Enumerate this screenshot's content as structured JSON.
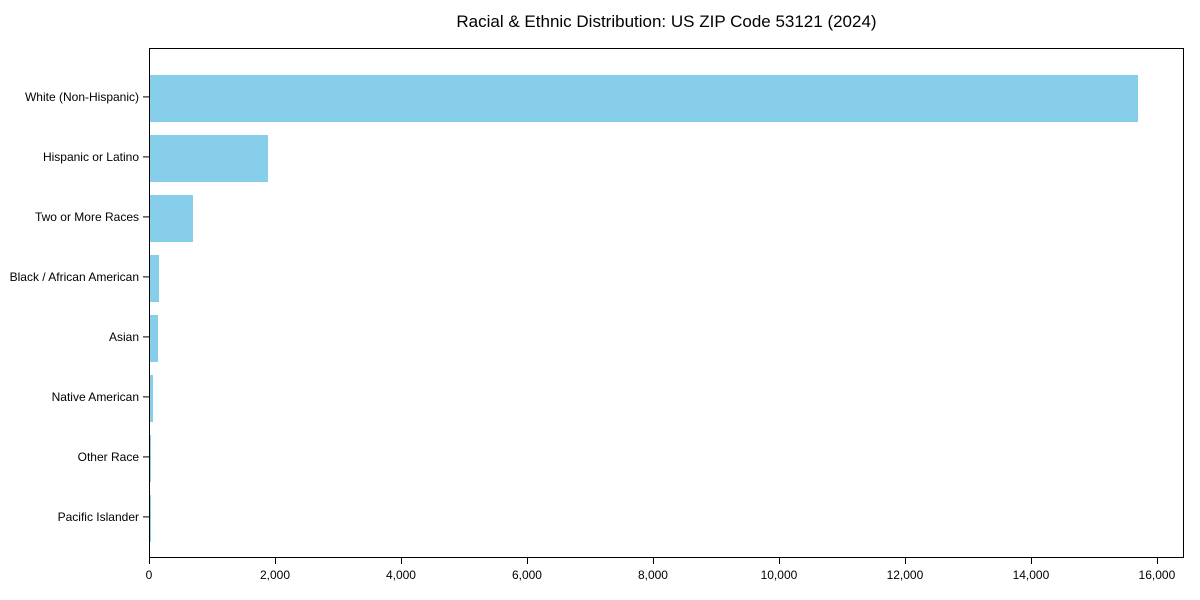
{
  "chart_data": {
    "type": "bar",
    "orientation": "horizontal",
    "title": "Racial & Ethnic Distribution: US ZIP Code 53121 (2024)",
    "categories": [
      "White (Non-Hispanic)",
      "Hispanic or Latino",
      "Two or More Races",
      "Black / African American",
      "Asian",
      "Native American",
      "Other Race",
      "Pacific Islander"
    ],
    "values": [
      15680,
      1870,
      680,
      150,
      130,
      50,
      8,
      2
    ],
    "xlabel": "",
    "ylabel": "",
    "xlim": [
      0,
      16430
    ],
    "x_ticks": [
      {
        "value": 0,
        "label": "0"
      },
      {
        "value": 2000,
        "label": "2,000"
      },
      {
        "value": 4000,
        "label": "4,000"
      },
      {
        "value": 6000,
        "label": "6,000"
      },
      {
        "value": 8000,
        "label": "8,000"
      },
      {
        "value": 10000,
        "label": "10,000"
      },
      {
        "value": 12000,
        "label": "12,000"
      },
      {
        "value": 14000,
        "label": "14,000"
      },
      {
        "value": 16000,
        "label": "16,000"
      }
    ],
    "bar_color": "#87CEEB",
    "grid": false,
    "legend": null
  }
}
